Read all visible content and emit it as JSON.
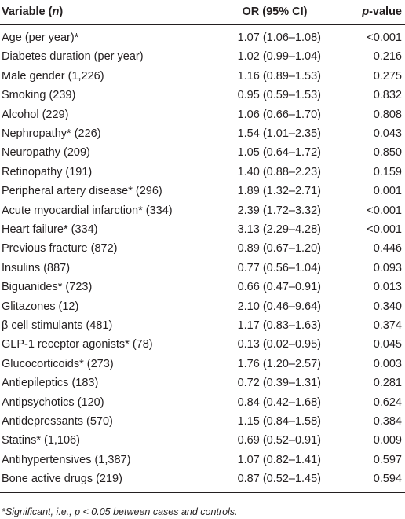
{
  "table": {
    "header": [
      [
        "Variable (",
        "n",
        ")"
      ],
      [
        "OR (95% CI)"
      ],
      [
        "p",
        "-value"
      ]
    ],
    "rows": [
      [
        "Age (per year)*",
        "1.07 (1.06–1.08)",
        "<0.001"
      ],
      [
        "Diabetes duration (per year)",
        "1.02 (0.99–1.04)",
        "0.216"
      ],
      [
        "Male gender (1,226)",
        "1.16 (0.89–1.53)",
        "0.275"
      ],
      [
        "Smoking (239)",
        "0.95 (0.59–1.53)",
        "0.832"
      ],
      [
        "Alcohol (229)",
        "1.06 (0.66–1.70)",
        "0.808"
      ],
      [
        "Nephropathy* (226)",
        "1.54 (1.01–2.35)",
        "0.043"
      ],
      [
        "Neuropathy (209)",
        "1.05 (0.64–1.72)",
        "0.850"
      ],
      [
        "Retinopathy (191)",
        "1.40 (0.88–2.23)",
        "0.159"
      ],
      [
        "Peripheral artery disease* (296)",
        "1.89 (1.32–2.71)",
        "0.001"
      ],
      [
        "Acute myocardial infarction* (334)",
        "2.39 (1.72–3.32)",
        "<0.001"
      ],
      [
        "Heart failure* (334)",
        "3.13 (2.29–4.28)",
        "<0.001"
      ],
      [
        "Previous fracture (872)",
        "0.89 (0.67–1.20)",
        "0.446"
      ],
      [
        "Insulins (887)",
        "0.77 (0.56–1.04)",
        "0.093"
      ],
      [
        "Biguanides* (723)",
        "0.66 (0.47–0.91)",
        "0.013"
      ],
      [
        "Glitazones (12)",
        "2.10 (0.46–9.64)",
        "0.340"
      ],
      [
        "β cell stimulants (481)",
        "1.17 (0.83–1.63)",
        "0.374"
      ],
      [
        "GLP-1 receptor agonists* (78)",
        "0.13 (0.02–0.95)",
        "0.045"
      ],
      [
        "Glucocorticoids* (273)",
        "1.76 (1.20–2.57)",
        "0.003"
      ],
      [
        "Antiepileptics (183)",
        "0.72 (0.39–1.31)",
        "0.281"
      ],
      [
        "Antipsychotics (120)",
        "0.84 (0.42–1.68)",
        "0.624"
      ],
      [
        "Antidepressants (570)",
        "1.15 (0.84–1.58)",
        "0.384"
      ],
      [
        "Statins* (1,106)",
        "0.69 (0.52–0.91)",
        "0.009"
      ],
      [
        "Antihypertensives (1,387)",
        "1.07 (0.82–1.41)",
        "0.597"
      ],
      [
        "Bone active drugs (219)",
        "0.87 (0.52–1.45)",
        "0.594"
      ]
    ],
    "footnote": "*Significant, i.e., p < 0.05 between cases and controls."
  }
}
